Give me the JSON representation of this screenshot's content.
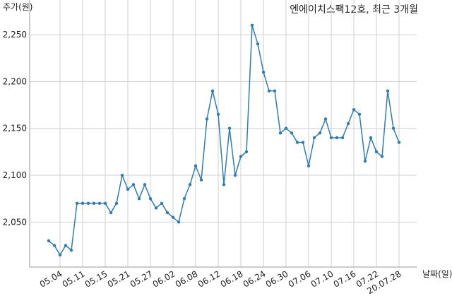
{
  "chart_data": {
    "type": "line",
    "title": "엔에이치스팩12호, 최근 3개월",
    "y_label": "주가(원)",
    "x_label": "날짜(일)",
    "categories": [
      null,
      null,
      "05.04",
      null,
      null,
      null,
      "05.11",
      null,
      null,
      null,
      "05.15",
      null,
      null,
      null,
      "05.21",
      null,
      null,
      null,
      "05.27",
      null,
      null,
      null,
      "06.02",
      null,
      null,
      null,
      "06.08",
      null,
      null,
      null,
      "06.12",
      null,
      null,
      null,
      "06.18",
      null,
      null,
      null,
      "06.24",
      null,
      null,
      null,
      "06.30",
      null,
      null,
      null,
      "07.06",
      null,
      null,
      null,
      "07.10",
      null,
      null,
      null,
      "07.16",
      null,
      null,
      null,
      "07.22",
      null,
      null,
      null,
      "20.07.28"
    ],
    "series": [
      {
        "name": "주가",
        "color": "#2e7db5",
        "values": [
          2030,
          2025,
          2015,
          2025,
          2020,
          2070,
          2070,
          2070,
          2070,
          2070,
          2070,
          2060,
          2070,
          2100,
          2085,
          2090,
          2075,
          2090,
          2075,
          2065,
          2070,
          2060,
          2055,
          2050,
          2075,
          2090,
          2110,
          2095,
          2160,
          2190,
          2165,
          2090,
          2150,
          2100,
          2120,
          2125,
          2260,
          2240,
          2210,
          2190,
          2190,
          2145,
          2150,
          2145,
          2135,
          2135,
          2110,
          2140,
          2145,
          2160,
          2140,
          2140,
          2140,
          2155,
          2170,
          2165,
          2115,
          2140,
          2125,
          2120,
          2190,
          2150,
          2135
        ]
      }
    ],
    "ylim": [
      2002,
      2287
    ],
    "yticks": [
      {
        "value": 2050,
        "label": "2,050"
      },
      {
        "value": 2100,
        "label": "2,100"
      },
      {
        "value": 2150,
        "label": "2,150"
      },
      {
        "value": 2200,
        "label": "2,200"
      },
      {
        "value": 2250,
        "label": "2,250"
      }
    ],
    "grid": true
  }
}
